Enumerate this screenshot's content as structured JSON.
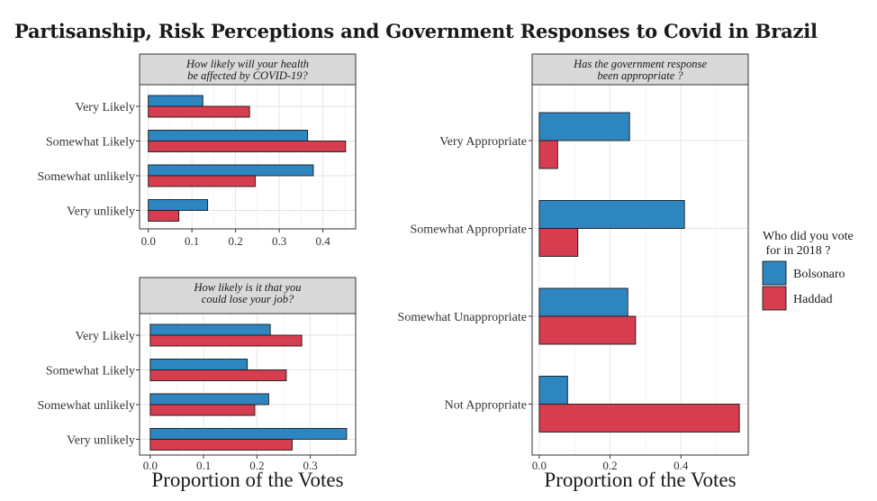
{
  "title": "Partisanship, Risk Perceptions and Government Responses to Covid in Brazil",
  "colors": {
    "Bolsonaro": "#2e86c1",
    "Haddad": "#d63d4f"
  },
  "legend": {
    "title_lines": [
      "Who did you vote",
      " for in 2018 ?"
    ],
    "entries": [
      "Bolsonaro",
      "Haddad"
    ]
  },
  "chart_data": [
    {
      "type": "bar",
      "orientation": "horizontal",
      "title_lines": [
        "How likely will your health",
        "be affected by COVID-19?"
      ],
      "categories": [
        "Very Likely",
        "Somewhat Likely",
        "Somewhat unlikely",
        "Very unlikely"
      ],
      "series": [
        {
          "name": "Bolsonaro",
          "values": [
            0.125,
            0.365,
            0.378,
            0.136
          ]
        },
        {
          "name": "Haddad",
          "values": [
            0.232,
            0.452,
            0.245,
            0.07
          ]
        }
      ],
      "xlim": [
        -0.02,
        0.475
      ],
      "xticks": [
        0.0,
        0.1,
        0.2,
        0.3,
        0.4
      ],
      "xtick_labels": [
        "0.0",
        "0.1",
        "0.2",
        "0.3",
        "0.4"
      ],
      "xlabel": "",
      "grid": true
    },
    {
      "type": "bar",
      "orientation": "horizontal",
      "title_lines": [
        "How likely is it that you",
        "could lose your job?"
      ],
      "categories": [
        "Very Likely",
        "Somewhat Likely",
        "Somewhat unlikely",
        "Very unlikely"
      ],
      "series": [
        {
          "name": "Bolsonaro",
          "values": [
            0.225,
            0.182,
            0.222,
            0.368
          ]
        },
        {
          "name": "Haddad",
          "values": [
            0.284,
            0.255,
            0.196,
            0.266
          ]
        }
      ],
      "xlim": [
        -0.02,
        0.385
      ],
      "xticks": [
        0.0,
        0.1,
        0.2,
        0.3
      ],
      "xtick_labels": [
        "0.0",
        "0.1",
        "0.2",
        "0.3"
      ],
      "xlabel": "Proportion of the Votes",
      "grid": true
    },
    {
      "type": "bar",
      "orientation": "horizontal",
      "title_lines": [
        "Has the government response",
        "been appropriate ?"
      ],
      "categories": [
        "Very Appropriate",
        "Somewhat Appropriate",
        "Somewhat Unappropriate",
        "Not Appropriate"
      ],
      "series": [
        {
          "name": "Bolsonaro",
          "values": [
            0.255,
            0.41,
            0.25,
            0.08
          ]
        },
        {
          "name": "Haddad",
          "values": [
            0.052,
            0.109,
            0.272,
            0.565
          ]
        }
      ],
      "xlim": [
        -0.02,
        0.59
      ],
      "xticks": [
        0.0,
        0.2,
        0.4
      ],
      "xtick_labels": [
        "0.0",
        "0.2",
        "0.4"
      ],
      "xlabel": "Proportion of the Votes",
      "grid": true
    }
  ]
}
